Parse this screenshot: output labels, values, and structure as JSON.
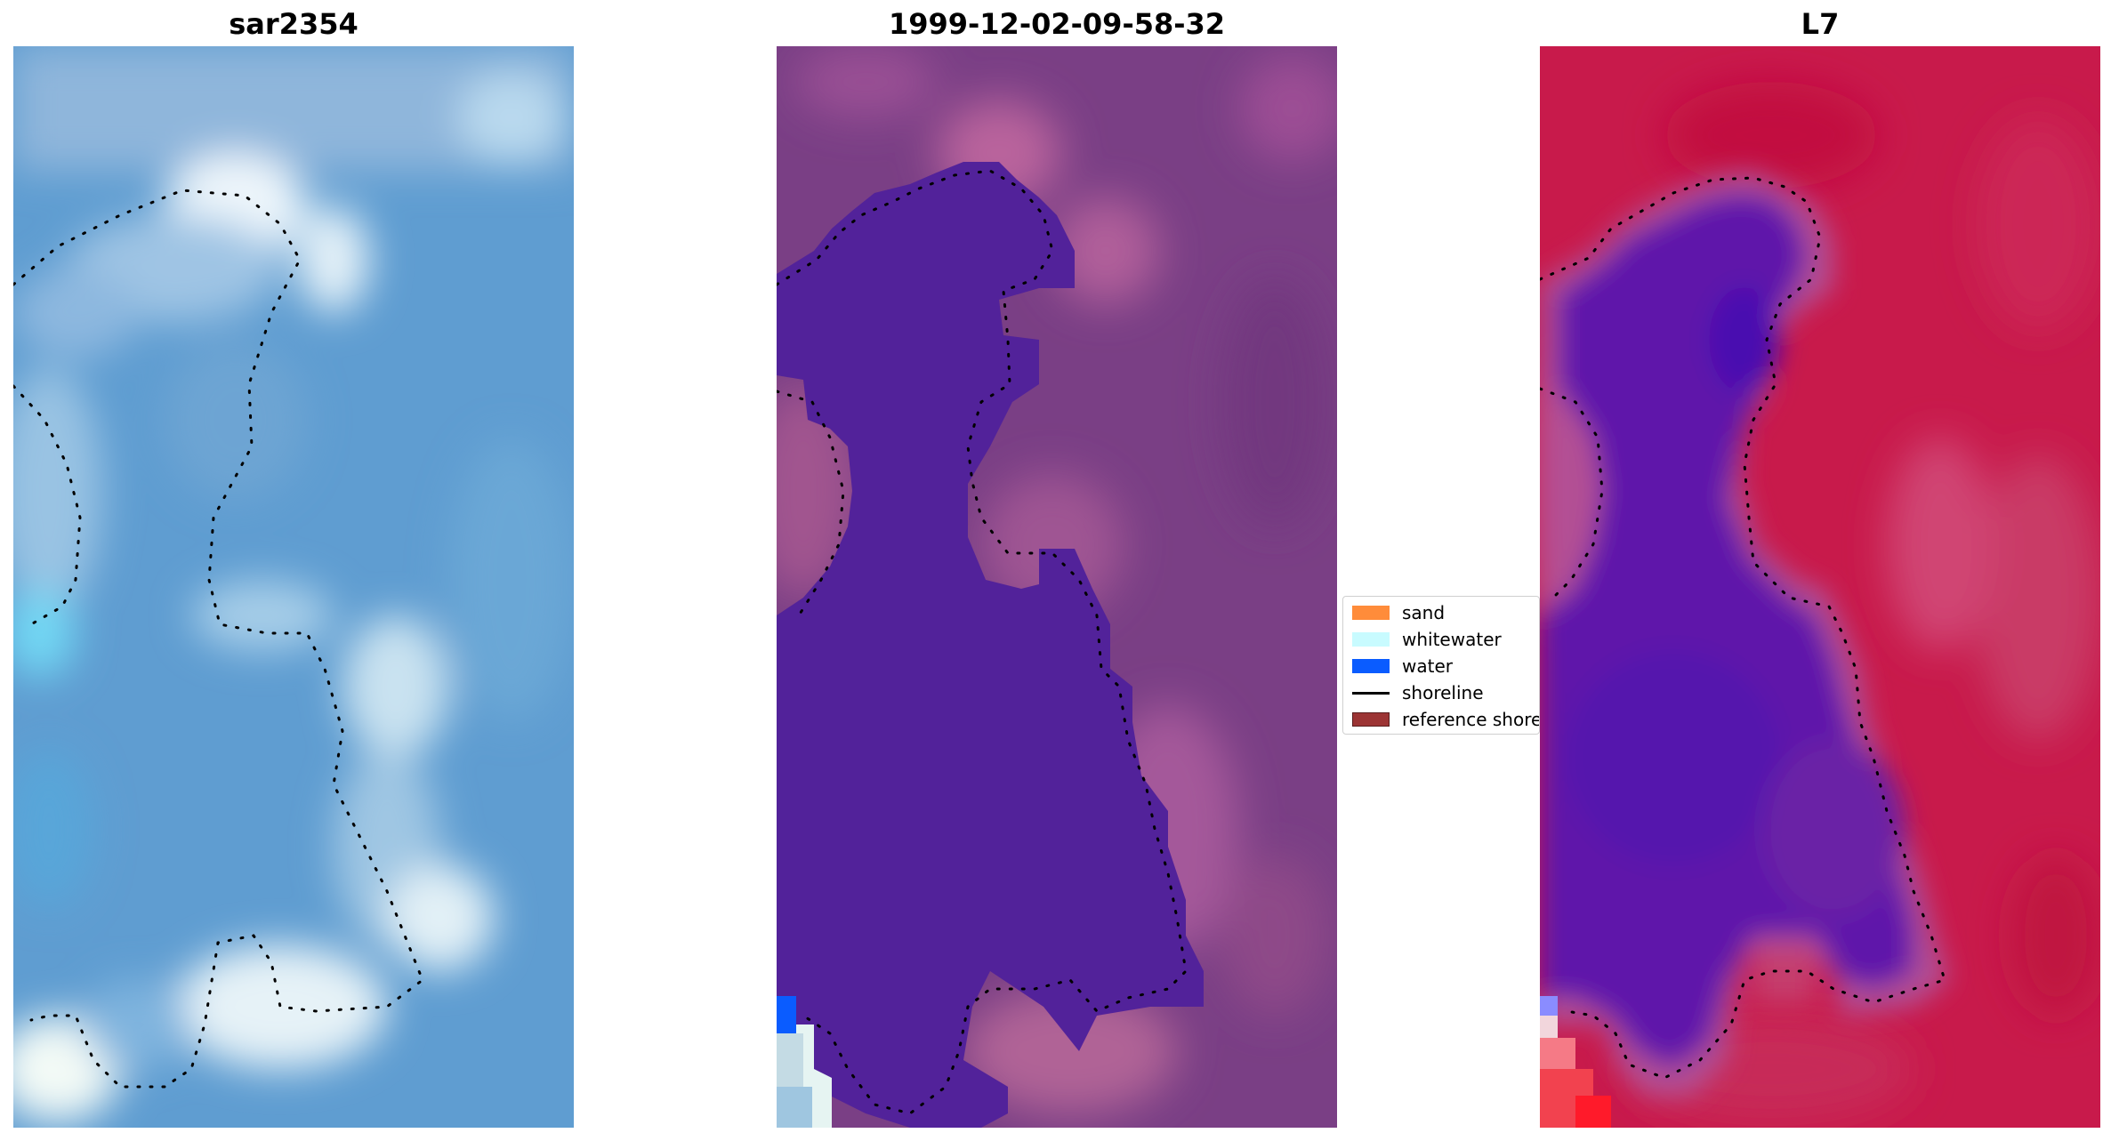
{
  "panels": [
    {
      "title": "sar2354",
      "kind": "rgb"
    },
    {
      "title": "1999-12-02-09-58-32",
      "kind": "classified"
    },
    {
      "title": "L7",
      "kind": "index"
    }
  ],
  "legend": {
    "items": [
      {
        "label": "sand",
        "color": "#ff8c3a",
        "type": "patch"
      },
      {
        "label": "whitewater",
        "color": "#c8fbff",
        "type": "patch"
      },
      {
        "label": "water",
        "color": "#0a5cff",
        "type": "patch"
      },
      {
        "label": "shoreline",
        "color": "#000000",
        "type": "line"
      },
      {
        "label": "reference shoreline",
        "color": "#9c3434",
        "type": "patch"
      }
    ]
  },
  "colors": {
    "water_class": "#52229a",
    "land_class": "#7e4083",
    "rgb_base": "#5c9bd0",
    "index_land": "#c8174a",
    "index_water": "#5c18a8"
  }
}
